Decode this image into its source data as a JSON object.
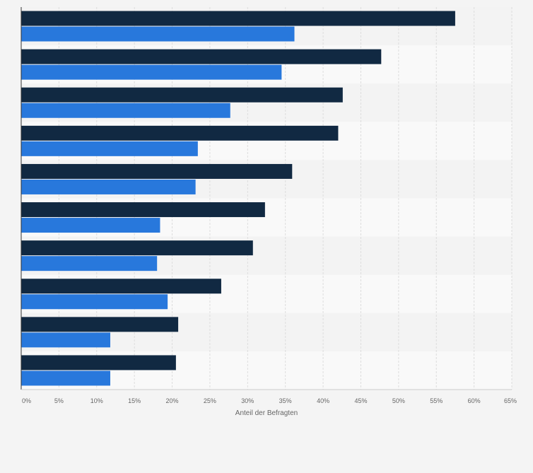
{
  "chart_data": {
    "type": "bar",
    "orientation": "horizontal",
    "categories": [
      "",
      "",
      "",
      "",
      "",
      "",
      "",
      "",
      "",
      ""
    ],
    "series": [
      {
        "values": [
          57.5,
          47.7,
          42.6,
          42.0,
          35.9,
          32.3,
          30.7,
          26.5,
          20.8,
          20.5
        ]
      },
      {
        "values": [
          36.2,
          34.5,
          27.7,
          23.4,
          23.1,
          18.4,
          18.0,
          19.4,
          11.8,
          11.8
        ]
      }
    ],
    "xlabel": "Anteil der Befragten",
    "xlim": [
      0,
      65
    ],
    "xticks": [
      "0%",
      "5%",
      "10%",
      "15%",
      "20%",
      "25%",
      "30%",
      "35%",
      "40%",
      "45%",
      "50%",
      "55%",
      "60%",
      "65%"
    ],
    "grid": true,
    "legend": "none",
    "colors": {
      "series": [
        "#112942",
        "#2878dc"
      ],
      "band_light": "#f9f9f9",
      "band_dark": "#f3f3f3",
      "grid": "#dddddd"
    }
  }
}
